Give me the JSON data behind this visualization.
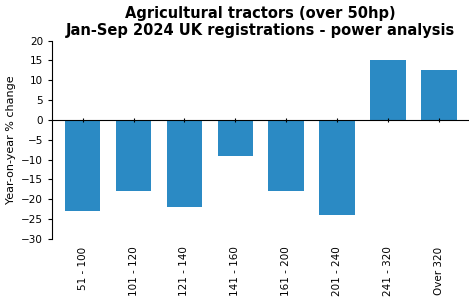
{
  "categories": [
    "51 - 100",
    "101 - 120",
    "121 - 140",
    "141 - 160",
    "161 - 200",
    "201 - 240",
    "241 - 320",
    "Over 320"
  ],
  "values": [
    -23,
    -18,
    -22,
    -9,
    -18,
    -24,
    15,
    12.5
  ],
  "bar_color": "#2b8ac4",
  "title_line1": "Agricultural tractors (over 50hp)",
  "title_line2": "Jan-Sep 2024 UK registrations - power analysis",
  "ylabel": "Year-on-year % change",
  "ylim": [
    -30,
    20
  ],
  "yticks": [
    -30,
    -25,
    -20,
    -15,
    -10,
    -5,
    0,
    5,
    10,
    15,
    20
  ],
  "background_color": "#ffffff",
  "title_fontsize": 10.5,
  "ylabel_fontsize": 8,
  "tick_fontsize": 7.5
}
